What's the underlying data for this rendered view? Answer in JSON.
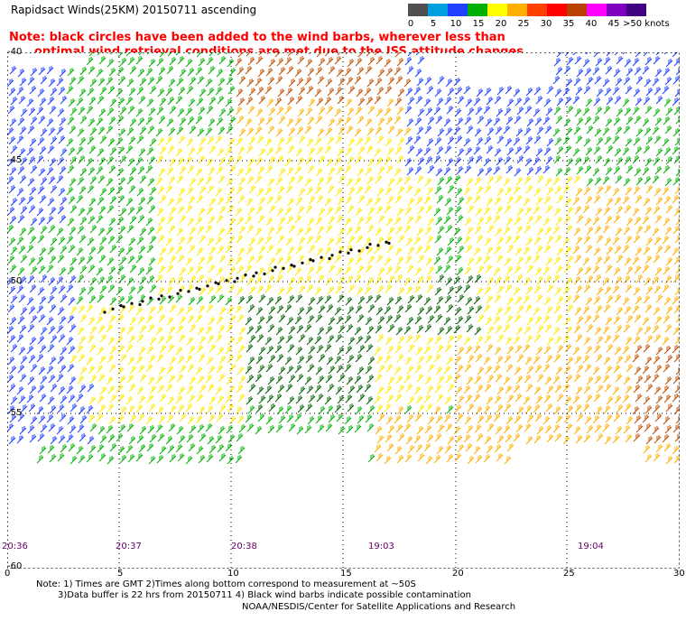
{
  "title": "Rapidsact Winds(25KM) 20150711 ascending",
  "note": {
    "line1": "Note: black circles have been added to the wind barbs, wherever less than",
    "line2": "optimal wind retrieval conditions are met due to the ISS attitude changes."
  },
  "scale": {
    "labels": [
      "0",
      "5",
      "10",
      "15",
      "20",
      "25",
      "30",
      "35",
      "40",
      "45",
      ">50 knots"
    ],
    "colors": [
      "#505050",
      "#00a0e0",
      "#2040ff",
      "#00b000",
      "#ffff00",
      "#ffb000",
      "#ff4000",
      "#ff0000",
      "#b84000",
      "#ff00ff",
      "#8000c0",
      "#400080"
    ]
  },
  "axes": {
    "x_ticks": [
      "0",
      "5",
      "10",
      "15",
      "20",
      "25",
      "30"
    ],
    "lat_labels": [
      "-40",
      "-45",
      "-50",
      "-55",
      "-60"
    ]
  },
  "times": [
    "20:36",
    "20:37",
    "20:38",
    "19:03",
    "19:04"
  ],
  "footer": {
    "line1": "Note: 1) Times are GMT 2)Times along bottom correspond to measurement at ~50S",
    "line2": "3)Data buffer is 22 hrs from 20150711 4) Black wind barbs indicate possible contamination",
    "line3": "NOAA/NESDIS/Center for Satellite Applications and Research"
  },
  "colors": {
    "blue": "#2040ff",
    "green": "#00b000",
    "dark_green": "#006000",
    "yellow": "#ffe800",
    "orange": "#ffb000",
    "brown": "#c05000",
    "red_note": "#ff0000"
  }
}
